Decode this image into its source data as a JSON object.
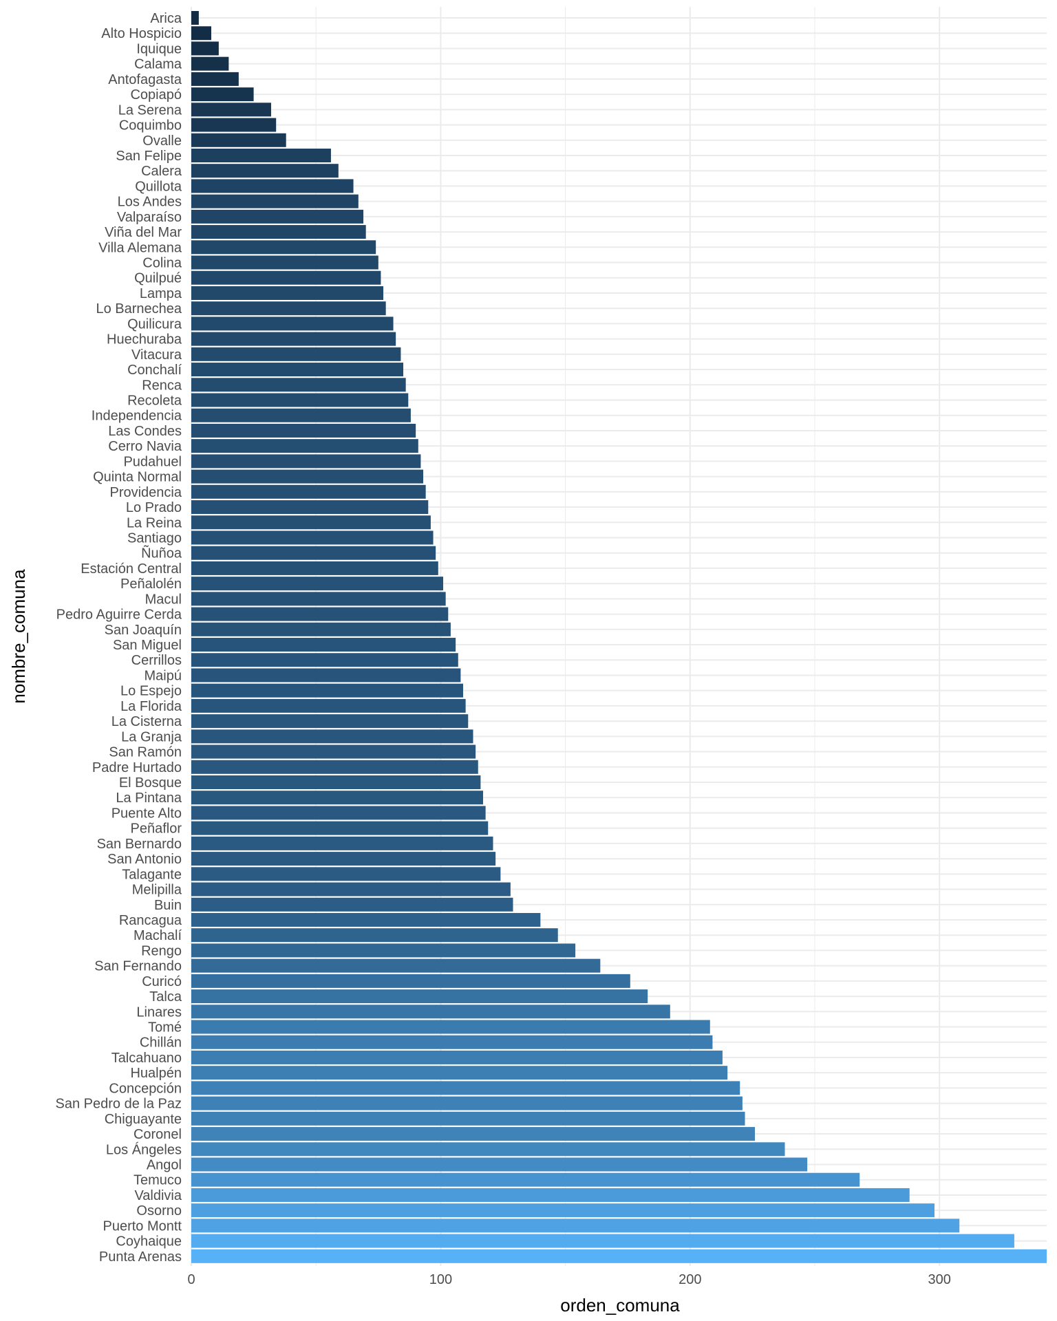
{
  "chart_data": {
    "type": "bar",
    "orientation": "horizontal",
    "xlabel": "orden_comuna",
    "ylabel": "nombre_comuna",
    "xlim": [
      0,
      343
    ],
    "x_ticks": [
      0,
      100,
      200,
      300
    ],
    "grid": true,
    "legend": "none",
    "colors": {
      "low": "#132B43",
      "high": "#56B1F7",
      "gridline": "#ebebeb"
    },
    "categories": [
      "Arica",
      "Alto Hospicio",
      "Iquique",
      "Calama",
      "Antofagasta",
      "Copiapó",
      "La Serena",
      "Coquimbo",
      "Ovalle",
      "San Felipe",
      "Calera",
      "Quillota",
      "Los Andes",
      "Valparaíso",
      "Viña del Mar",
      "Villa Alemana",
      "Colina",
      "Quilpué",
      "Lampa",
      "Lo Barnechea",
      "Quilicura",
      "Huechuraba",
      "Vitacura",
      "Conchalí",
      "Renca",
      "Recoleta",
      "Independencia",
      "Las Condes",
      "Cerro Navia",
      "Pudahuel",
      "Quinta Normal",
      "Providencia",
      "Lo Prado",
      "La Reina",
      "Santiago",
      "Ñuñoa",
      "Estación Central",
      "Peñalolén",
      "Macul",
      "Pedro Aguirre Cerda",
      "San Joaquín",
      "San Miguel",
      "Cerrillos",
      "Maipú",
      "Lo Espejo",
      "La Florida",
      "La Cisterna",
      "La Granja",
      "San Ramón",
      "Padre Hurtado",
      "El Bosque",
      "La Pintana",
      "Puente Alto",
      "Peñaflor",
      "San Bernardo",
      "San Antonio",
      "Talagante",
      "Melipilla",
      "Buin",
      "Rancagua",
      "Machalí",
      "Rengo",
      "San Fernando",
      "Curicó",
      "Talca",
      "Linares",
      "Tomé",
      "Chillán",
      "Talcahuano",
      "Hualpén",
      "Concepción",
      "San Pedro de la Paz",
      "Chiguayante",
      "Coronel",
      "Los Ángeles",
      "Angol",
      "Temuco",
      "Valdivia",
      "Osorno",
      "Puerto Montt",
      "Coyhaique",
      "Punta Arenas"
    ],
    "values": [
      3,
      8,
      11,
      15,
      19,
      25,
      32,
      34,
      38,
      56,
      59,
      65,
      67,
      69,
      70,
      74,
      75,
      76,
      77,
      78,
      81,
      82,
      84,
      85,
      86,
      87,
      88,
      90,
      91,
      92,
      93,
      94,
      95,
      96,
      97,
      98,
      99,
      101,
      102,
      103,
      104,
      106,
      107,
      108,
      109,
      110,
      111,
      113,
      114,
      115,
      116,
      117,
      118,
      119,
      121,
      122,
      124,
      128,
      129,
      140,
      147,
      154,
      164,
      176,
      183,
      192,
      208,
      209,
      213,
      215,
      220,
      221,
      222,
      226,
      238,
      247,
      268,
      288,
      298,
      308,
      330,
      343
    ]
  }
}
